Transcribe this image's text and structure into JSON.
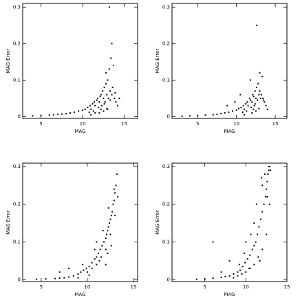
{
  "chart_data": [
    {
      "type": "scatter",
      "xlabel": "MAG",
      "ylabel": "MAG Error",
      "color": "#000000",
      "xlim": [
        2.8,
        16.6
      ],
      "ylim": [
        -0.005,
        0.31
      ],
      "xticks": [
        5,
        10,
        15
      ],
      "yticks": [
        0,
        0.1,
        0.2,
        0.3
      ],
      "x": [
        4,
        5,
        6,
        6.5,
        7,
        7.5,
        8,
        8.5,
        9,
        9.5,
        10,
        10.3,
        10.6,
        10.9,
        11,
        11.2,
        11.4,
        11.5,
        11.7,
        11.8,
        12,
        12.1,
        12.2,
        12.3,
        12.4,
        12.5,
        12.6,
        12.7,
        12.8,
        12.9,
        13,
        13.1,
        13.2,
        13.3,
        13.4,
        13.5,
        13.6,
        13.8,
        14,
        14.2,
        11,
        12,
        12.5,
        13,
        13.2,
        13.5,
        12.8,
        11.5,
        12.2,
        13.7,
        10.8,
        11.9,
        12.6,
        13.3,
        12.9,
        11.3,
        14.4,
        13.9
      ],
      "y": [
        0.002,
        0.003,
        0.004,
        0.005,
        0.006,
        0.007,
        0.008,
        0.01,
        0.012,
        0.015,
        0.018,
        0.02,
        0.025,
        0.03,
        0.02,
        0.035,
        0.04,
        0.03,
        0.045,
        0.05,
        0.04,
        0.055,
        0.06,
        0.03,
        0.07,
        0.05,
        0.08,
        0.04,
        0.09,
        0.06,
        0.1,
        0.05,
        0.13,
        0.07,
        0.16,
        0.06,
        0.08,
        0.05,
        0.04,
        0.03,
        0.005,
        0.01,
        0.015,
        0.02,
        0.3,
        0.2,
        0.12,
        0.01,
        0.02,
        0.14,
        0.012,
        0.025,
        0.035,
        0.045,
        0.022,
        0.015,
        0.05,
        0.065
      ]
    },
    {
      "type": "scatter",
      "xlabel": "MAG",
      "ylabel": "MAG Error",
      "color": "#000000",
      "xlim": [
        1.7,
        16.5
      ],
      "ylim": [
        -0.005,
        0.31
      ],
      "xticks": [
        5,
        10,
        15
      ],
      "yticks": [
        0,
        0.1,
        0.2,
        0.3
      ],
      "x": [
        3,
        4,
        5,
        6,
        7,
        7.5,
        8,
        8.5,
        9,
        9.5,
        10,
        10.3,
        10.6,
        10.9,
        11,
        11.2,
        11.4,
        11.5,
        11.7,
        11.8,
        12,
        12.1,
        12.2,
        12.3,
        12.4,
        12.5,
        12.6,
        12.7,
        12.8,
        12.9,
        13,
        13.1,
        13.2,
        13.4,
        13.6,
        13.8,
        14,
        11,
        12,
        12.5,
        12.6,
        13,
        11.8,
        10.5,
        12.2,
        13.3,
        10.8,
        11.9,
        12.4,
        13.5,
        12.9,
        11.3,
        9.8,
        8.8
      ],
      "y": [
        0.001,
        0.002,
        0.003,
        0.004,
        0.005,
        0.006,
        0.008,
        0.01,
        0.012,
        0.015,
        0.018,
        0.022,
        0.025,
        0.03,
        0.02,
        0.035,
        0.04,
        0.03,
        0.05,
        0.045,
        0.04,
        0.06,
        0.055,
        0.03,
        0.07,
        0.05,
        0.08,
        0.045,
        0.09,
        0.06,
        0.07,
        0.05,
        0.06,
        0.05,
        0.04,
        0.03,
        0.02,
        0.005,
        0.01,
        0.015,
        0.25,
        0.12,
        0.1,
        0.06,
        0.02,
        0.11,
        0.012,
        0.025,
        0.035,
        0.045,
        0.022,
        0.015,
        0.04,
        0.03
      ]
    },
    {
      "type": "scatter",
      "xlabel": "MAG",
      "ylabel": "MAG Error",
      "color": "#000000",
      "xlim": [
        3,
        15.45
      ],
      "ylim": [
        -0.005,
        0.309
      ],
      "xticks": [
        5,
        10,
        15
      ],
      "yticks": [
        0,
        0.1,
        0.2,
        0.3
      ],
      "x": [
        4.5,
        5.5,
        6.5,
        7,
        7.5,
        8,
        8.5,
        9,
        9.3,
        9.6,
        9.9,
        10.2,
        10.5,
        10.8,
        11,
        11.2,
        11.4,
        11.6,
        11.8,
        12,
        12.1,
        12.2,
        12.3,
        12.4,
        12.5,
        12.6,
        12.7,
        12.8,
        12.9,
        13,
        13.1,
        13.2,
        10,
        10.5,
        11,
        11.5,
        12,
        12.5,
        13,
        9.5,
        10.8,
        11.7,
        12.3,
        12.9,
        8,
        7,
        11,
        12,
        12.6,
        13.3,
        9,
        10.2,
        11.3,
        12.2
      ],
      "y": [
        0.001,
        0.002,
        0.003,
        0.004,
        0.005,
        0.007,
        0.01,
        0.015,
        0.02,
        0.025,
        0.03,
        0.035,
        0.045,
        0.055,
        0.06,
        0.07,
        0.08,
        0.09,
        0.1,
        0.11,
        0.12,
        0.13,
        0.14,
        0.15,
        0.16,
        0.17,
        0.18,
        0.2,
        0.21,
        0.23,
        0.25,
        0.28,
        0.02,
        0.03,
        0.04,
        0.06,
        0.08,
        0.12,
        0.17,
        0.04,
        0.08,
        0.13,
        0.19,
        0.24,
        0.03,
        0.02,
        0.1,
        0.04,
        0.09,
        0.22,
        0.005,
        0.012,
        0.05,
        0.07
      ]
    },
    {
      "type": "scatter",
      "xlabel": "MAG",
      "ylabel": "MAG Error",
      "color": "#000000",
      "xlim": [
        1,
        15
      ],
      "ylim": [
        -0.005,
        0.309
      ],
      "xticks": [
        5,
        10,
        15
      ],
      "yticks": [
        0,
        0.1,
        0.2,
        0.3
      ],
      "x": [
        4,
        5,
        6,
        7,
        7.5,
        8,
        8.5,
        9,
        9.3,
        9.6,
        9.9,
        10.2,
        10.5,
        10.8,
        11,
        11.2,
        11.4,
        11.6,
        11.8,
        12,
        12.2,
        12.4,
        12.5,
        12.6,
        12.7,
        12.8,
        12.9,
        13,
        8.5,
        9,
        9.5,
        10,
        10.5,
        11,
        11.5,
        12,
        12.5,
        10,
        11,
        12,
        12.3,
        12.8,
        9.8,
        10.6,
        11.3,
        11.9,
        12.6,
        7,
        6,
        8,
        9.2,
        10.4,
        11.7,
        12.9
      ],
      "y": [
        0.001,
        0.002,
        0.004,
        0.006,
        0.008,
        0.01,
        0.015,
        0.02,
        0.025,
        0.035,
        0.045,
        0.055,
        0.065,
        0.08,
        0.09,
        0.1,
        0.12,
        0.14,
        0.16,
        0.18,
        0.2,
        0.22,
        0.24,
        0.26,
        0.28,
        0.29,
        0.3,
        0.29,
        0.005,
        0.01,
        0.015,
        0.02,
        0.03,
        0.04,
        0.06,
        0.08,
        0.12,
        0.1,
        0.15,
        0.25,
        0.28,
        0.3,
        0.07,
        0.12,
        0.2,
        0.27,
        0.22,
        0.02,
        0.1,
        0.05,
        0.04,
        0.03,
        0.05,
        0.2
      ]
    }
  ]
}
